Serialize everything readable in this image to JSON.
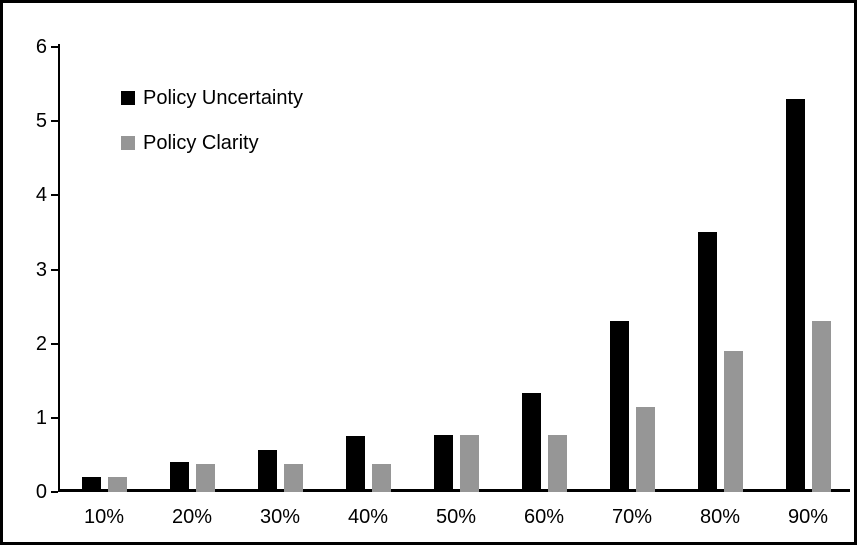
{
  "figure": {
    "background_color": "#ffffff",
    "border_color": "#000000"
  },
  "chart_data": {
    "type": "bar",
    "title": "",
    "xlabel": "",
    "ylabel": "",
    "categories": [
      "10%",
      "20%",
      "30%",
      "40%",
      "50%",
      "60%",
      "70%",
      "80%",
      "90%"
    ],
    "series": [
      {
        "name": "Policy Uncertainty",
        "color": "#000000",
        "values": [
          0.2,
          0.4,
          0.57,
          0.76,
          0.77,
          1.33,
          2.3,
          3.5,
          5.3
        ]
      },
      {
        "name": "Policy Clarity",
        "color": "#969696",
        "values": [
          0.2,
          0.38,
          0.38,
          0.38,
          0.77,
          0.77,
          1.15,
          1.9,
          2.3
        ]
      }
    ],
    "ylim": [
      0,
      6
    ],
    "yticks": [
      0,
      1,
      2,
      3,
      4,
      5,
      6
    ],
    "grid": false,
    "legend_position": "top-left-inside"
  }
}
